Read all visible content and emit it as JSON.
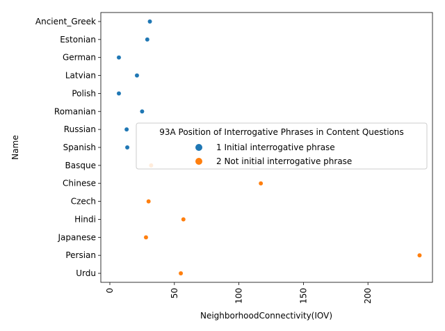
{
  "chart_data": {
    "type": "scatter",
    "title": "",
    "xlabel": "NeighborhoodConnectivity(IOV)",
    "ylabel": "Name",
    "xlim": [
      -7,
      250
    ],
    "xticks": [
      0,
      50,
      100,
      150,
      200
    ],
    "grid": false,
    "legend": {
      "title": "93A Position of Interrogative Phrases in Content Questions",
      "placement": "center-right"
    },
    "categories": [
      "Ancient_Greek",
      "Estonian",
      "German",
      "Latvian",
      "Polish",
      "Romanian",
      "Russian",
      "Spanish",
      "Basque",
      "Chinese",
      "Czech",
      "Hindi",
      "Japanese",
      "Persian",
      "Urdu"
    ],
    "series": [
      {
        "name": "1 Initial interrogative phrase",
        "color": "#1f77b4",
        "points": [
          {
            "y": "Ancient_Greek",
            "x": 31
          },
          {
            "y": "Estonian",
            "x": 29
          },
          {
            "y": "German",
            "x": 7
          },
          {
            "y": "Latvian",
            "x": 21
          },
          {
            "y": "Polish",
            "x": 7
          },
          {
            "y": "Romanian",
            "x": 25
          },
          {
            "y": "Russian",
            "x": 13
          },
          {
            "y": "Spanish",
            "x": 13.5
          }
        ]
      },
      {
        "name": "2 Not initial interrogative phrase",
        "color": "#ff7f0e",
        "points": [
          {
            "y": "Basque",
            "x": 32
          },
          {
            "y": "Chinese",
            "x": 117
          },
          {
            "y": "Czech",
            "x": 30
          },
          {
            "y": "Hindi",
            "x": 57
          },
          {
            "y": "Japanese",
            "x": 28
          },
          {
            "y": "Persian",
            "x": 240
          },
          {
            "y": "Urdu",
            "x": 55
          }
        ]
      }
    ]
  }
}
